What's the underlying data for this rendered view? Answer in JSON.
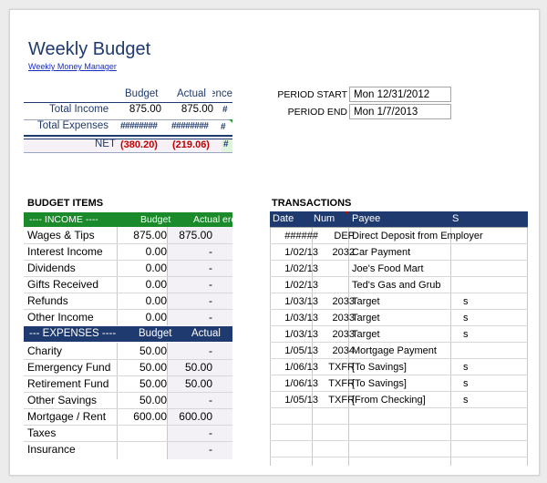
{
  "title": "Weekly Budget",
  "subtitle_link": "Weekly Money Manager",
  "summary": {
    "col_budget": "Budget",
    "col_actual": "Actual",
    "col_diff": "erence",
    "total_income_label": "Total Income",
    "total_income_budget": "875.00",
    "total_income_actual": "875.00",
    "total_income_diff": "#",
    "total_expenses_label": "Total Expenses",
    "total_expenses_budget": "########",
    "total_expenses_actual": "########",
    "total_expenses_diff": "#",
    "net_label": "NET",
    "net_budget": "(380.20)",
    "net_actual": "(219.06)",
    "net_diff": "#"
  },
  "period": {
    "start_label": "PERIOD START",
    "start_value": "Mon 12/31/2012",
    "end_label": "PERIOD END",
    "end_value": "Mon 1/7/2013"
  },
  "budget_items": {
    "section_title": "BUDGET ITEMS",
    "income_header": {
      "label": "---- INCOME ----",
      "budget": "Budget",
      "actual": "Actual",
      "diff": "ere"
    },
    "income": [
      {
        "name": "Wages & Tips",
        "budget": "875.00",
        "actual": "875.00"
      },
      {
        "name": "Interest Income",
        "budget": "0.00",
        "actual": "-"
      },
      {
        "name": "Dividends",
        "budget": "0.00",
        "actual": "-"
      },
      {
        "name": "Gifts Received",
        "budget": "0.00",
        "actual": "-"
      },
      {
        "name": "Refunds",
        "budget": "0.00",
        "actual": "-"
      },
      {
        "name": "Other Income",
        "budget": "0.00",
        "actual": "-"
      }
    ],
    "expenses_header": {
      "label": "--- EXPENSES ----",
      "budget": "Budget",
      "actual": "Actual",
      "diff": "e"
    },
    "expenses": [
      {
        "name": "Charity",
        "budget": "50.00",
        "actual": "-"
      },
      {
        "name": "Emergency Fund",
        "budget": "50.00",
        "actual": "50.00"
      },
      {
        "name": "Retirement Fund",
        "budget": "50.00",
        "actual": "50.00"
      },
      {
        "name": "Other Savings",
        "budget": "50.00",
        "actual": "-"
      },
      {
        "name": "Mortgage / Rent",
        "budget": "600.00",
        "actual": "600.00"
      },
      {
        "name": "Taxes",
        "budget": "",
        "actual": "-"
      },
      {
        "name": "Insurance",
        "budget": "",
        "actual": "-"
      }
    ]
  },
  "transactions": {
    "section_title": "TRANSACTIONS",
    "headers": {
      "date": "Date",
      "num": "Num",
      "payee": "Payee",
      "s": "S"
    },
    "rows": [
      {
        "date": "######",
        "num": "DEP",
        "payee": "Direct Deposit from Employer",
        "s": ""
      },
      {
        "date": "1/02/13",
        "num": "2032",
        "payee": "Car Payment",
        "s": ""
      },
      {
        "date": "1/02/13",
        "num": "",
        "payee": "Joe's Food Mart",
        "s": ""
      },
      {
        "date": "1/02/13",
        "num": "",
        "payee": "Ted's Gas and Grub",
        "s": ""
      },
      {
        "date": "1/03/13",
        "num": "2033",
        "payee": "Target",
        "s": "s"
      },
      {
        "date": "1/03/13",
        "num": "2033",
        "payee": "Target",
        "s": "s"
      },
      {
        "date": "1/03/13",
        "num": "2033",
        "payee": "Target",
        "s": "s"
      },
      {
        "date": "1/05/13",
        "num": "2034",
        "payee": "Mortgage Payment",
        "s": ""
      },
      {
        "date": "1/06/13",
        "num": "TXFR",
        "payee": "[To Savings]",
        "s": "s"
      },
      {
        "date": "1/06/13",
        "num": "TXFR",
        "payee": "[To Savings]",
        "s": "s"
      },
      {
        "date": "1/05/13",
        "num": "TXFR",
        "payee": "[From Checking]",
        "s": "s"
      },
      {
        "date": "",
        "num": "",
        "payee": "",
        "s": ""
      },
      {
        "date": "",
        "num": "",
        "payee": "",
        "s": ""
      },
      {
        "date": "",
        "num": "",
        "payee": "",
        "s": ""
      }
    ]
  },
  "colors": {
    "navy": "#1f3a6e",
    "green": "#1a8a2a",
    "red": "#c00000"
  }
}
